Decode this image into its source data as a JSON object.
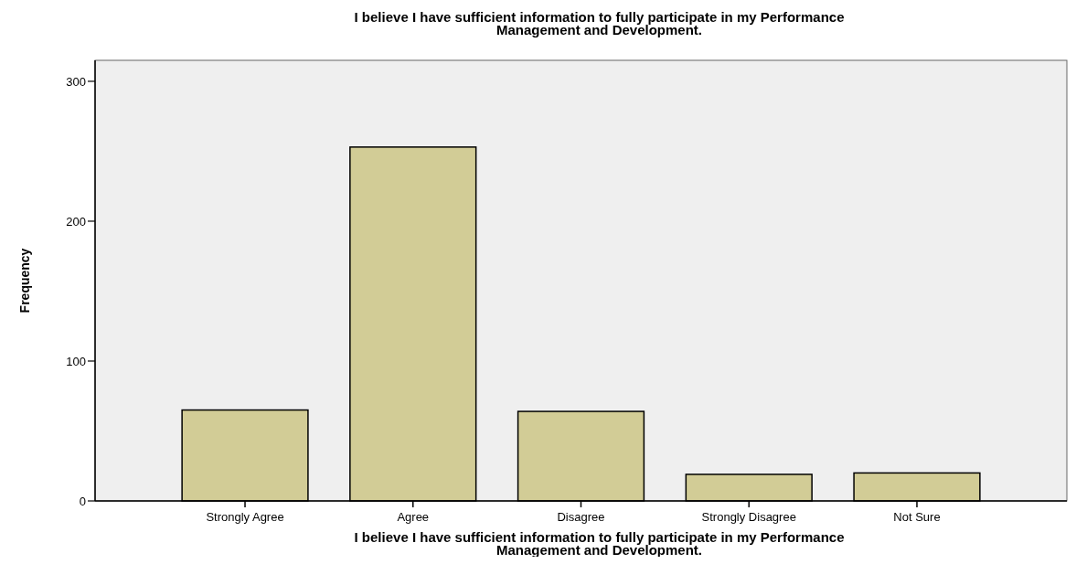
{
  "chart_data": {
    "type": "bar",
    "title": "I believe I have sufficient information to fully participate in my Performance\nManagement and Development.",
    "xlabel": "I believe I have sufficient information to fully participate in my Performance\nManagement and Development.",
    "ylabel": "Frequency",
    "categories": [
      "Strongly Agree",
      "Agree",
      "Disagree",
      "Strongly Disagree",
      "Not Sure"
    ],
    "values": [
      65,
      253,
      64,
      19,
      20
    ],
    "color": "#d2cc96",
    "ylim": [
      0,
      315
    ],
    "yticks": [
      0,
      100,
      200,
      300
    ],
    "grid": false
  }
}
